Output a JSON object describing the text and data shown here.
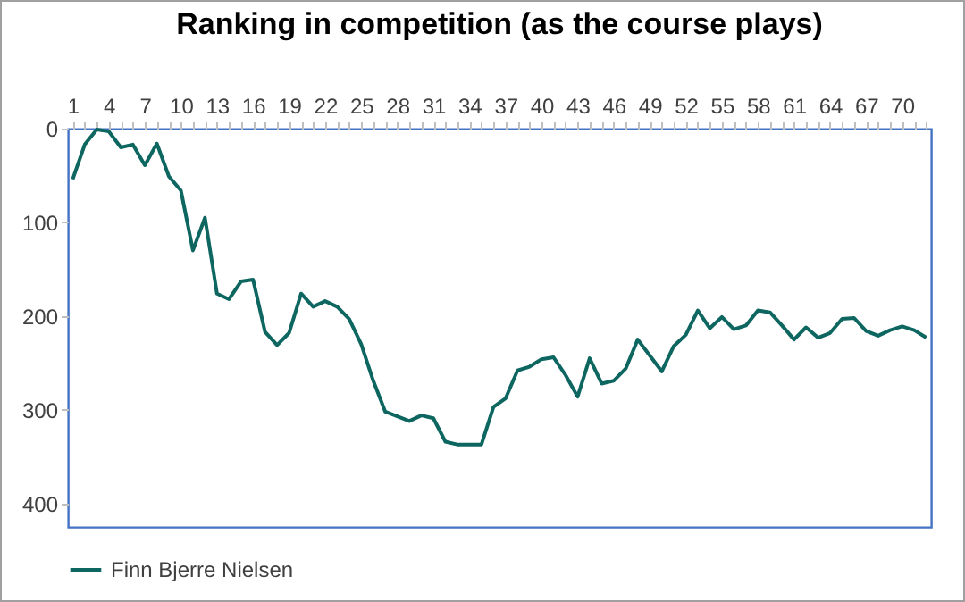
{
  "chart_data": {
    "type": "line",
    "title": "Ranking in competition (as the course plays)",
    "categories": [
      "1",
      null,
      null,
      "4",
      null,
      null,
      "7",
      null,
      null,
      "10",
      null,
      null,
      "13",
      null,
      null,
      "16",
      null,
      null,
      "19",
      null,
      null,
      "22",
      null,
      null,
      "25",
      null,
      null,
      "28",
      null,
      null,
      "31",
      null,
      null,
      "34",
      null,
      null,
      "37",
      null,
      null,
      "40",
      null,
      null,
      "43",
      null,
      null,
      "46",
      null,
      null,
      "49",
      null,
      null,
      "52",
      null,
      null,
      "55",
      null,
      null,
      "58",
      null,
      null,
      "61",
      null,
      null,
      "64",
      null,
      null,
      "67",
      null,
      null,
      "70",
      null,
      null
    ],
    "series": [
      {
        "name": "Finn Bjerre Nielsen",
        "color": "#0e6660",
        "values": [
          54,
          17,
          1,
          3,
          20,
          17,
          39,
          16,
          51,
          66,
          130,
          95,
          176,
          182,
          163,
          161,
          217,
          231,
          218,
          176,
          190,
          184,
          190,
          203,
          230,
          269,
          302,
          307,
          312,
          306,
          309,
          334,
          337,
          337,
          337,
          297,
          288,
          258,
          254,
          246,
          244,
          263,
          286,
          245,
          272,
          269,
          256,
          225,
          242,
          259,
          232,
          220,
          194,
          213,
          201,
          214,
          210,
          194,
          196,
          210,
          225,
          212,
          223,
          218,
          203,
          202,
          216,
          221,
          215,
          211,
          215,
          223
        ]
      }
    ],
    "ylim": [
      425,
      0
    ],
    "yticks": [
      0,
      100,
      200,
      300,
      400
    ],
    "grid": false,
    "legend": "bottom",
    "marker": "none",
    "line_style": "solid"
  }
}
